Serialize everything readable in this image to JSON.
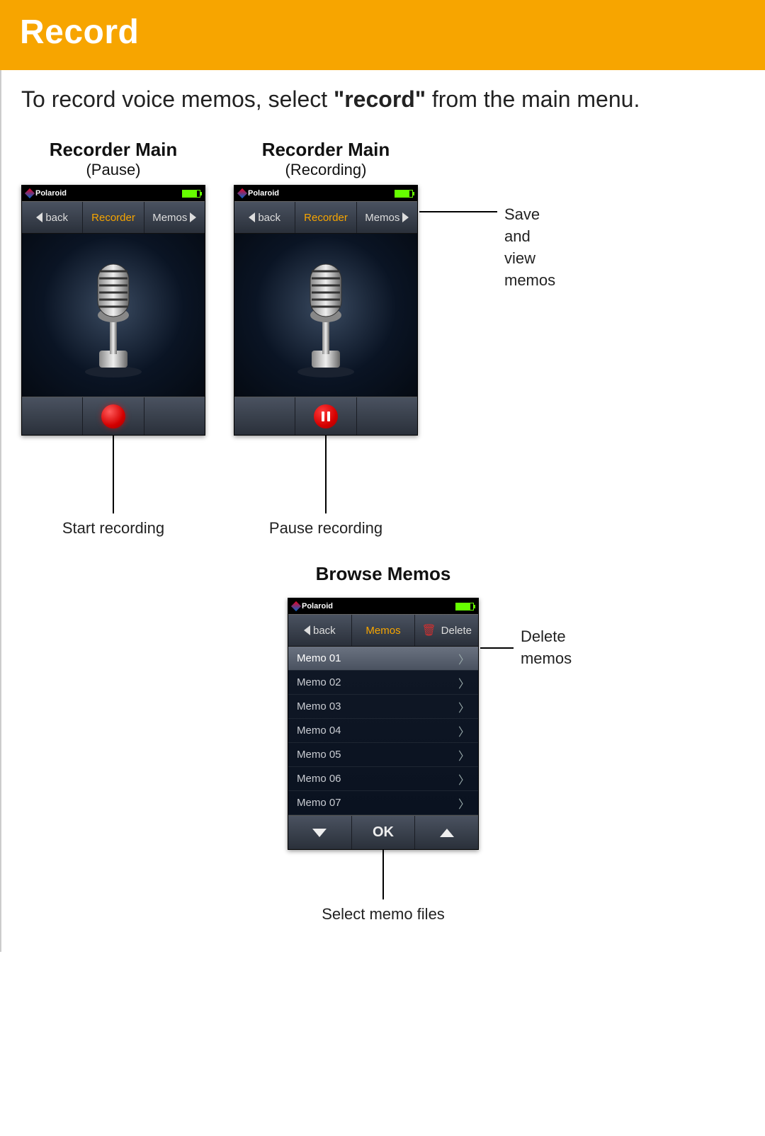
{
  "header": {
    "title": "Record"
  },
  "intro": {
    "prefix": "To record voice memos, select ",
    "bold": "\"record\"",
    "suffix": " from the main menu."
  },
  "colors": {
    "header_bg": "#f7a500",
    "accent": "#f7a500",
    "record_red": "#d40000",
    "battery_green": "#66ff00"
  },
  "screens": {
    "pause": {
      "title": "Recorder Main",
      "subtitle": "(Pause)",
      "brand": "Polaroid",
      "nav": {
        "back": "back",
        "center": "Recorder",
        "right": "Memos"
      },
      "action": "record",
      "callout": "Start recording"
    },
    "recording": {
      "title": "Recorder Main",
      "subtitle": "(Recording)",
      "brand": "Polaroid",
      "nav": {
        "back": "back",
        "center": "Recorder",
        "right": "Memos"
      },
      "action": "pause",
      "callout": "Pause recording",
      "side_callout": "Save and view memos"
    },
    "browse": {
      "title": "Browse Memos",
      "brand": "Polaroid",
      "nav": {
        "back": "back",
        "center": "Memos",
        "right": "Delete"
      },
      "items": [
        "Memo 01",
        "Memo 02",
        "Memo 03",
        "Memo 04",
        "Memo 05",
        "Memo 06",
        "Memo 07"
      ],
      "selected_index": 0,
      "ok_label": "OK",
      "side_callout": "Delete memos",
      "bottom_callout": "Select memo files"
    }
  }
}
